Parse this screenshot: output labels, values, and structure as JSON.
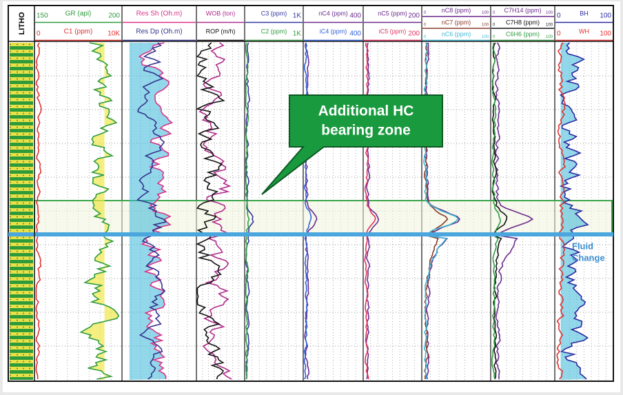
{
  "litho_label": "LITHO",
  "tracks": [
    {
      "curves": [
        {
          "name": "GR (api)",
          "min": 150,
          "max": 200,
          "color": "#2e9b3e"
        },
        {
          "name": "C1 (ppm)",
          "min": 0,
          "max": "10K",
          "color": "#e0302e"
        }
      ]
    },
    {
      "curves": [
        {
          "name": "Res Sh (Oh.m)",
          "color": "#d8338a"
        },
        {
          "name": "Res Dp (Oh.m)",
          "color": "#33338f"
        }
      ]
    },
    {
      "curves": [
        {
          "name": "WOB (ton)",
          "color": "#b02a8c"
        },
        {
          "name": "ROP (m/h)",
          "color": "#111111"
        }
      ]
    },
    {
      "curves": [
        {
          "name": "C3 (ppm)",
          "max": "1K",
          "color": "#3535a0"
        },
        {
          "name": "C2 (ppm)",
          "max": "1K",
          "color": "#2e9b3e"
        }
      ]
    },
    {
      "curves": [
        {
          "name": "nC4 (ppm)",
          "max": 400,
          "color": "#6a2a8c"
        },
        {
          "name": "iC4 (ppm)",
          "max": 400,
          "color": "#2f5fd8"
        }
      ]
    },
    {
      "curves": [
        {
          "name": "nC5 (ppm)",
          "max": 200,
          "color": "#6a2a8c"
        },
        {
          "name": "iC5 (ppm)",
          "max": 200,
          "color": "#e0305e"
        }
      ]
    },
    {
      "curves": [
        {
          "name": "nC8 (ppm)",
          "min": 0,
          "max": 100,
          "color": "#6a2a8c"
        },
        {
          "name": "nC7 (ppm)",
          "min": 0,
          "max": 100,
          "color": "#8a3a2a"
        },
        {
          "name": "nC6 (ppm)",
          "min": 0,
          "max": 100,
          "color": "#3ab8d4"
        }
      ]
    },
    {
      "curves": [
        {
          "name": "C7H14 (ppm)",
          "min": 0,
          "max": 100,
          "color": "#6a2a8c"
        },
        {
          "name": "C7H8 (ppm)",
          "min": 0,
          "max": 100,
          "color": "#111111"
        },
        {
          "name": "C6H6 (ppm)",
          "min": 0,
          "max": 100,
          "color": "#2e9b3e"
        }
      ]
    },
    {
      "curves": [
        {
          "name": "BH",
          "min": 0,
          "max": 100,
          "color": "#2a2aa0"
        },
        {
          "name": "WH",
          "min": 0,
          "max": 100,
          "color": "#e0302e"
        }
      ]
    }
  ],
  "callout": [
    "Additional HC",
    "bearing zone"
  ],
  "fluid_label": [
    "Fluid",
    "Change"
  ]
}
